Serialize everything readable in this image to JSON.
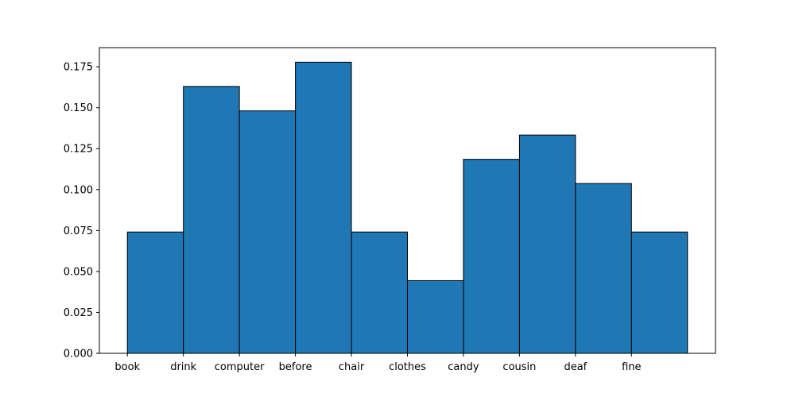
{
  "chart_data": {
    "type": "bar",
    "title": "",
    "xlabel": "",
    "ylabel": "",
    "x_tick_labels": [
      "book",
      "drink",
      "computer",
      "before",
      "chair",
      "clothes",
      "candy",
      "cousin",
      "deaf",
      "fine"
    ],
    "bins": [
      {
        "start": 0,
        "end": 1,
        "value": 0.0741
      },
      {
        "start": 1,
        "end": 2,
        "value": 0.163
      },
      {
        "start": 2,
        "end": 3,
        "value": 0.1481
      },
      {
        "start": 3,
        "end": 4,
        "value": 0.1778
      },
      {
        "start": 4,
        "end": 5,
        "value": 0.0741
      },
      {
        "start": 5,
        "end": 6,
        "value": 0.0444
      },
      {
        "start": 6,
        "end": 7,
        "value": 0.1185
      },
      {
        "start": 7,
        "end": 8,
        "value": 0.1333
      },
      {
        "start": 8,
        "end": 9,
        "value": 0.1037
      },
      {
        "start": 9,
        "end": 10,
        "value": 0.0741
      }
    ],
    "xlim": [
      -0.5,
      10.5
    ],
    "ylim": [
      0,
      0.1867
    ],
    "y_ticks": [
      0.0,
      0.025,
      0.05,
      0.075,
      0.1,
      0.125,
      0.15,
      0.175
    ],
    "y_tick_labels": [
      "0.000",
      "0.025",
      "0.050",
      "0.075",
      "0.100",
      "0.125",
      "0.150",
      "0.175"
    ],
    "bar_color": "#1f77b4",
    "edge_color": "#000000",
    "grid": false,
    "legend": "none"
  }
}
